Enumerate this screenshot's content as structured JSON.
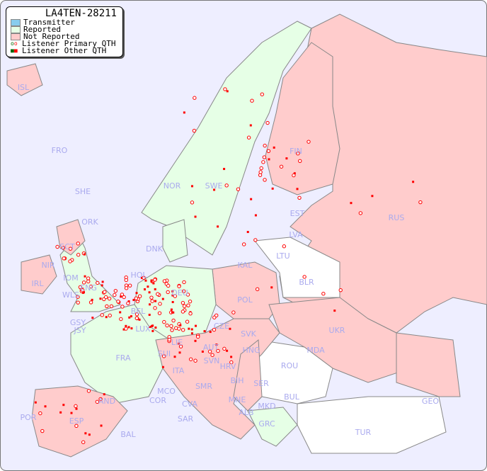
{
  "legend": {
    "title": "LA4TEN-28211",
    "items": [
      {
        "label": "Transmitter",
        "color": "#88ccee"
      },
      {
        "label": "Reported",
        "color": "#e6ffe6"
      },
      {
        "label": "Not Reported",
        "color": "#ffcccc"
      },
      {
        "label": "Listener Primary QTH",
        "marker": "circle"
      },
      {
        "label": "Listener Other QTH",
        "marker": "square"
      }
    ]
  },
  "colors": {
    "sea": "#eeeeff",
    "reported": "#e6ffe6",
    "not_reported": "#ffcccc",
    "no_data": "#ffffff",
    "label": "#aaaaee",
    "marker": "#ff0000",
    "marker_alt": "#006600"
  },
  "countries": {
    "reported": [
      "NOR",
      "SWE",
      "ENG",
      "WLS",
      "GSY",
      "JSY",
      "HOL",
      "LUX",
      "DEU",
      "FRA",
      "LIE",
      "SVN",
      "MKD",
      "GRC",
      "DNK"
    ],
    "not_reported": [
      "ISL",
      "FRO",
      "SHE",
      "ORK",
      "SCT",
      "NIR",
      "IRL",
      "IOM",
      "BEL",
      "SUI",
      "AUT",
      "CZE",
      "SVK",
      "HNG",
      "HRV",
      "ITA",
      "SMR",
      "CVA",
      "SAR",
      "COR",
      "MCO",
      "ESP",
      "POR",
      "AND",
      "BAL",
      "POL",
      "FIN",
      "EST",
      "LVA",
      "RUS",
      "UKR",
      "ALB",
      "MNE",
      "SER",
      "KAL"
    ],
    "no_data": [
      "LTU",
      "BLR",
      "MDA",
      "ROU",
      "BUL",
      "BIH",
      "TUR",
      "GEO"
    ]
  },
  "labels": [
    "ISL",
    "FRO",
    "SHE",
    "ORK",
    "SCT",
    "NIR",
    "IRL",
    "IOM",
    "ENG",
    "WLS",
    "GSY",
    "JSY",
    "HOL",
    "BEL",
    "LUX",
    "DNK",
    "DEU",
    "FRA",
    "SUI",
    "LIE",
    "AUT",
    "CZE",
    "SVK",
    "HNG",
    "SVN",
    "HRV",
    "BIH",
    "SER",
    "ITA",
    "MCO",
    "COR",
    "CVA",
    "SMR",
    "SAR",
    "MNE",
    "ALB",
    "MKD",
    "GRC",
    "BUL",
    "ROU",
    "MDA",
    "UKR",
    "GEO",
    "TUR",
    "POL",
    "KAL",
    "LTU",
    "LVA",
    "EST",
    "BLR",
    "RUS",
    "FIN",
    "SWE",
    "NOR",
    "AND",
    "ESP",
    "POR",
    "BAL"
  ]
}
